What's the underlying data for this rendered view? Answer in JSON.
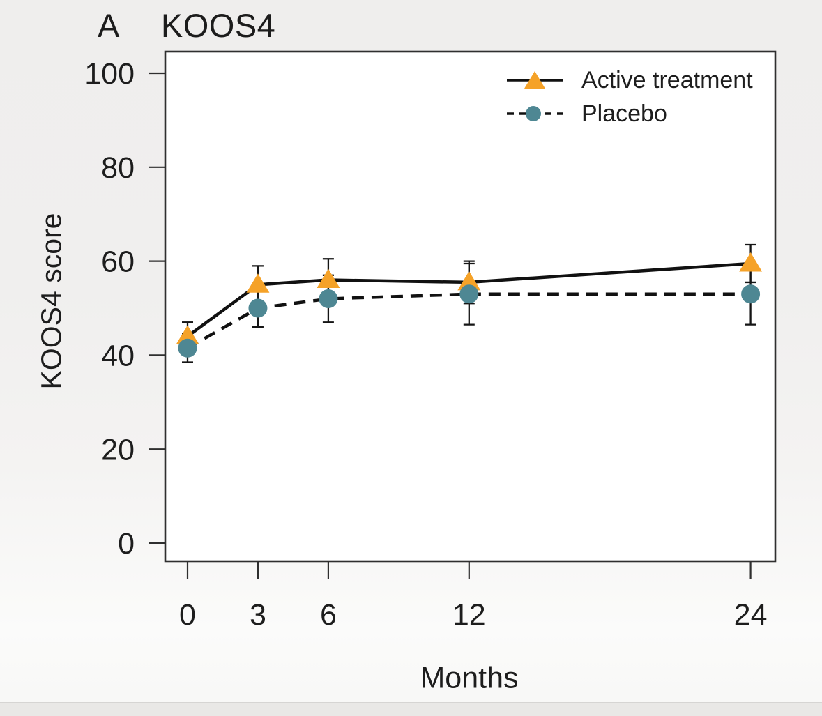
{
  "chart_data": {
    "type": "line",
    "panel_label": "A",
    "title": "KOOS4",
    "xlabel": "Months",
    "ylabel": "KOOS4 score",
    "x": [
      0,
      3,
      6,
      12,
      24
    ],
    "x_tick_labels": [
      "0",
      "3",
      "6",
      "12",
      "24"
    ],
    "y_ticks": [
      0,
      20,
      40,
      60,
      80,
      100
    ],
    "ylim": [
      0,
      100
    ],
    "grid": false,
    "legend_position": "top-right",
    "background": "#f0efee",
    "plot_background": "#ffffff",
    "axis_color": "#2f2f2f",
    "tick_label_color": "#1d1d1d",
    "line_color": "#111111",
    "error_bar_color": "#151515",
    "series": [
      {
        "name": "Active treatment",
        "marker": "triangle",
        "marker_color": "#F5A228",
        "line_style": "solid",
        "values": [
          44,
          55,
          56,
          55.5,
          59.5
        ],
        "errors": [
          3,
          4,
          4.5,
          4.5,
          4
        ]
      },
      {
        "name": "Placebo",
        "marker": "circle",
        "marker_color": "#4E8793",
        "line_style": "dashed",
        "values": [
          41.5,
          50,
          52,
          53,
          53
        ],
        "errors": [
          3,
          4,
          5,
          6.5,
          6.5
        ]
      }
    ]
  }
}
